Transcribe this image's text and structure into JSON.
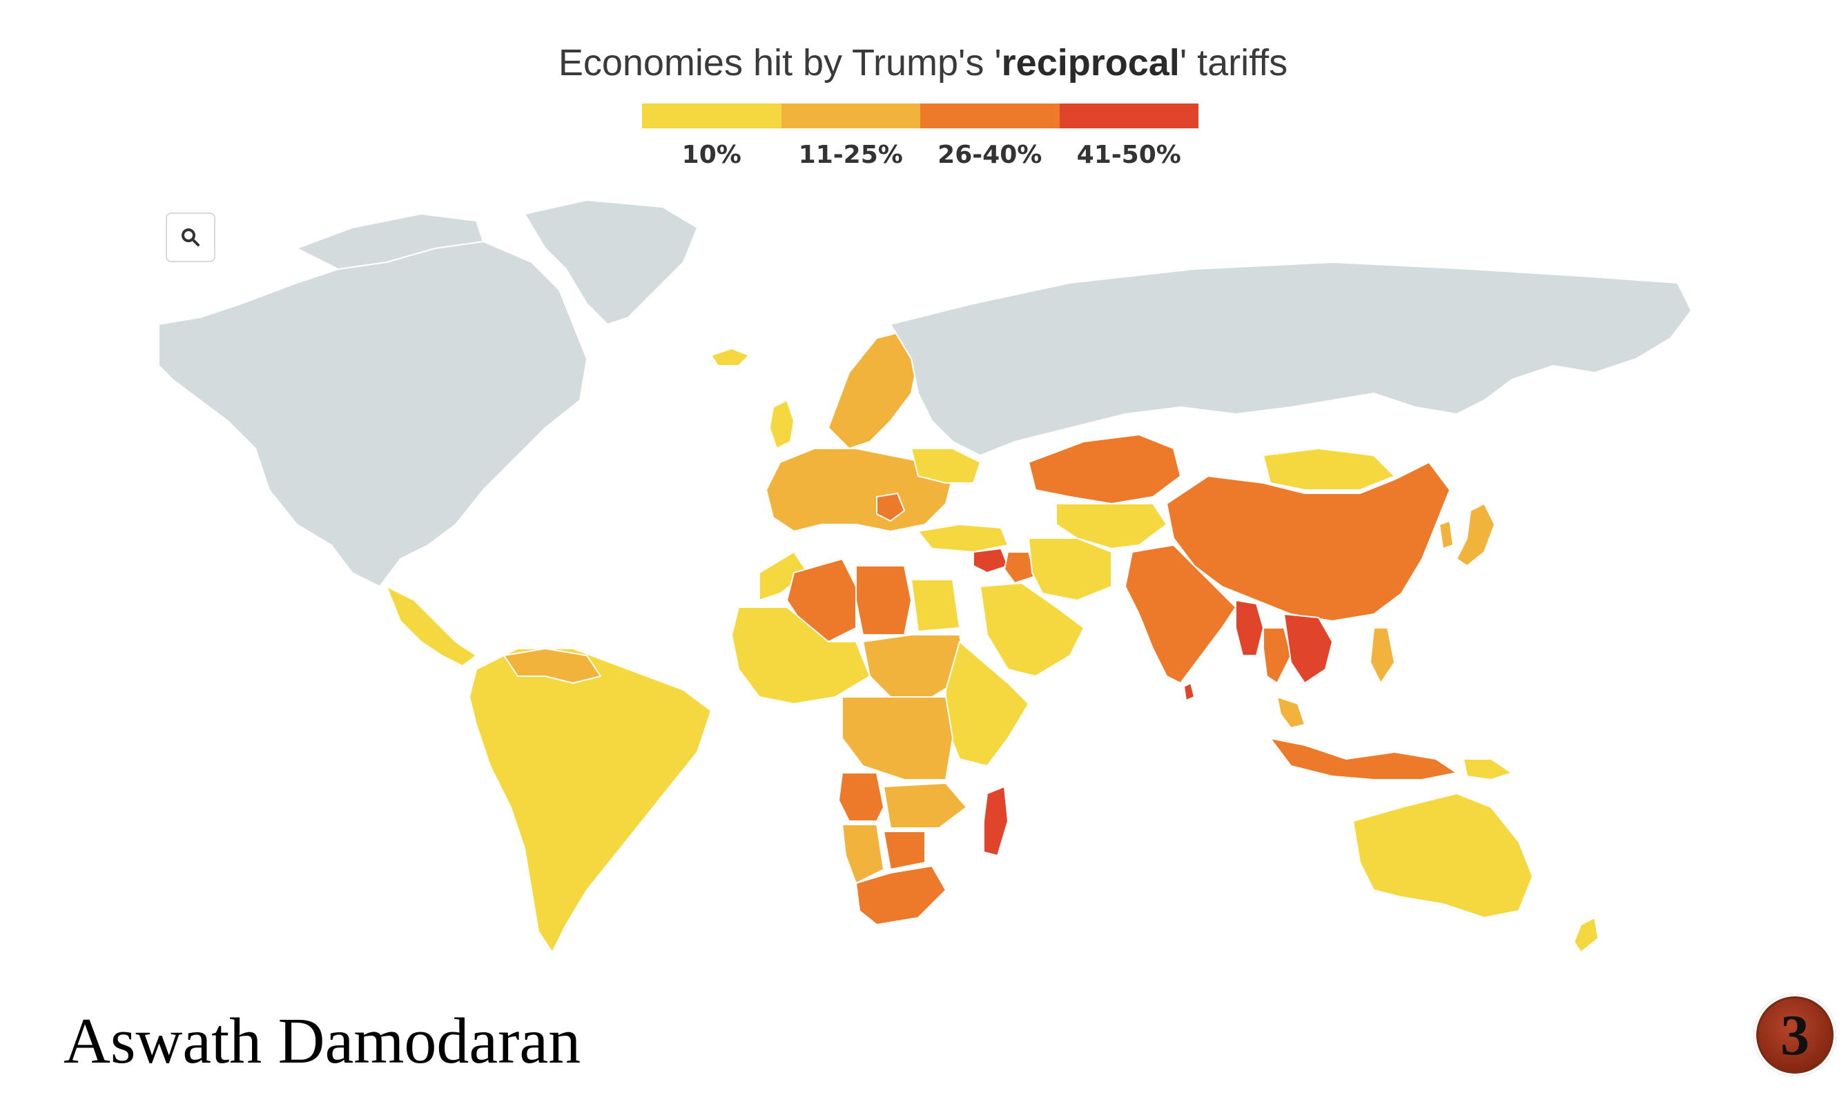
{
  "title": {
    "prefix": "Economies hit by Trump's '",
    "emphasis": "reciprocal",
    "suffix": "' tariffs"
  },
  "legend": [
    {
      "label": "10%",
      "color": "#f5d840"
    },
    {
      "label": "11-25%",
      "color": "#f2b33c"
    },
    {
      "label": "26-40%",
      "color": "#ed7a2a"
    },
    {
      "label": "41-50%",
      "color": "#e0442a"
    }
  ],
  "colors": {
    "no_data": "#d3dbdc",
    "background": "#ffffff"
  },
  "map": {
    "zoom_icon": "search-icon",
    "regions": [
      {
        "region": "North America",
        "category": "no data"
      },
      {
        "region": "Greenland",
        "category": "no data"
      },
      {
        "region": "Russia",
        "category": "no data"
      },
      {
        "region": "Antarctica",
        "category": "no data"
      },
      {
        "region": "Central America",
        "category": "10%"
      },
      {
        "region": "South America",
        "category": "10%"
      },
      {
        "region": "Venezuela / Guyana",
        "category": "11-25%"
      },
      {
        "region": "Iceland",
        "category": "10%"
      },
      {
        "region": "Europe (EU)",
        "category": "11-25%"
      },
      {
        "region": "United Kingdom",
        "category": "10%"
      },
      {
        "region": "Norway",
        "category": "11-25%"
      },
      {
        "region": "Balkans",
        "category": "26-40%"
      },
      {
        "region": "Ukraine / Belarus",
        "category": "10%"
      },
      {
        "region": "Turkey",
        "category": "10%"
      },
      {
        "region": "Syria",
        "category": "41-50%"
      },
      {
        "region": "Iraq",
        "category": "26-40%"
      },
      {
        "region": "Arabian Peninsula",
        "category": "10%"
      },
      {
        "region": "Iran",
        "category": "10%"
      },
      {
        "region": "Kazakhstan",
        "category": "26-40%"
      },
      {
        "region": "Central Asia",
        "category": "10%"
      },
      {
        "region": "Mongolia",
        "category": "10%"
      },
      {
        "region": "China",
        "category": "26-40%"
      },
      {
        "region": "Japan",
        "category": "11-25%"
      },
      {
        "region": "Korea",
        "category": "11-25%"
      },
      {
        "region": "India",
        "category": "26-40%"
      },
      {
        "region": "Sri Lanka",
        "category": "41-50%"
      },
      {
        "region": "Myanmar",
        "category": "41-50%"
      },
      {
        "region": "Laos",
        "category": "41-50%"
      },
      {
        "region": "Vietnam",
        "category": "41-50%"
      },
      {
        "region": "Cambodia",
        "category": "41-50%"
      },
      {
        "region": "Thailand",
        "category": "26-40%"
      },
      {
        "region": "Indonesia",
        "category": "26-40%"
      },
      {
        "region": "Malaysia",
        "category": "11-25%"
      },
      {
        "region": "Philippines",
        "category": "11-25%"
      },
      {
        "region": "Papua New Guinea",
        "category": "10%"
      },
      {
        "region": "Algeria",
        "category": "26-40%"
      },
      {
        "region": "Libya",
        "category": "26-40%"
      },
      {
        "region": "Morocco / Egypt",
        "category": "10%"
      },
      {
        "region": "West Africa",
        "category": "10%"
      },
      {
        "region": "Chad / Sudan area",
        "category": "11-25%"
      },
      {
        "region": "Central Africa",
        "category": "11-25%"
      },
      {
        "region": "East Africa",
        "category": "10%"
      },
      {
        "region": "Angola",
        "category": "26-40%"
      },
      {
        "region": "Zambia / Malawi",
        "category": "11-25%"
      },
      {
        "region": "Namibia",
        "category": "11-25%"
      },
      {
        "region": "Botswana",
        "category": "26-40%"
      },
      {
        "region": "South Africa",
        "category": "26-40%"
      },
      {
        "region": "Madagascar",
        "category": "41-50%"
      },
      {
        "region": "Australia",
        "category": "10%"
      },
      {
        "region": "New Zealand",
        "category": "10%"
      }
    ]
  },
  "footer": {
    "author": "Aswath Damodaran",
    "page_number": "3"
  }
}
